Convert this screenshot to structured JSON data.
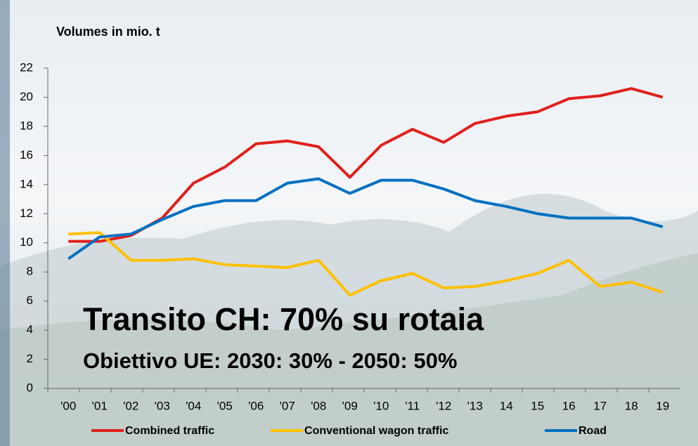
{
  "chart_data": {
    "type": "line",
    "y_axis_title": "Volumes in mio. t",
    "annotations": [
      "Transito CH: 70%  su rotaia",
      "Obiettivo UE: 2030: 30% - 2050: 50%"
    ],
    "categories": [
      "'00",
      "'01",
      "'02",
      "'03",
      "'04",
      "'05",
      "'06",
      "'07",
      "'08",
      "'09",
      "'10",
      "'11",
      "'12",
      "'13",
      "14",
      "15",
      "16",
      "17",
      "18",
      "19"
    ],
    "series": [
      {
        "name": "Combined traffic",
        "color": "#e0201b",
        "values": [
          10.1,
          10.1,
          10.5,
          11.7,
          14.1,
          15.2,
          16.8,
          17.0,
          16.6,
          14.5,
          16.7,
          17.8,
          16.9,
          18.2,
          18.7,
          19.0,
          19.9,
          20.1,
          20.6,
          20.0
        ]
      },
      {
        "name": "Conventional wagon traffic",
        "color": "#ffc000",
        "values": [
          10.6,
          10.7,
          8.8,
          8.8,
          8.9,
          8.5,
          8.4,
          8.3,
          8.8,
          6.4,
          7.4,
          7.9,
          6.9,
          7.0,
          7.4,
          7.9,
          8.8,
          7.0,
          7.3,
          6.6
        ]
      },
      {
        "name": "Road",
        "color": "#0070c0",
        "values": [
          8.9,
          10.4,
          10.6,
          11.6,
          12.5,
          12.9,
          12.9,
          14.1,
          14.4,
          13.4,
          14.3,
          14.3,
          13.7,
          12.9,
          12.5,
          12.0,
          11.7,
          11.7,
          11.7,
          11.1
        ]
      }
    ],
    "ylim": [
      0,
      22
    ],
    "yticks": [
      0,
      2,
      4,
      6,
      8,
      10,
      12,
      14,
      16,
      18,
      20,
      22
    ],
    "legend": "bottom"
  }
}
